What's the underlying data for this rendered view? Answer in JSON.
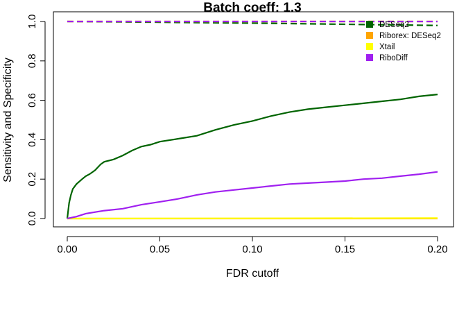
{
  "chart_data": {
    "type": "line",
    "title": "Batch coeff: 1.3",
    "xlabel": "FDR cutoff",
    "ylabel": "Sensitivity and Specificity",
    "xlim": [
      0.0,
      0.2
    ],
    "ylim": [
      0.0,
      1.0
    ],
    "x_ticks": [
      "0.00",
      "0.05",
      "0.10",
      "0.15",
      "0.20"
    ],
    "y_ticks": [
      "0.0",
      "0.2",
      "0.4",
      "0.6",
      "0.8",
      "1.0"
    ],
    "grid": false,
    "legend_position": "top-right",
    "series": [
      {
        "name": "DESeq2",
        "color": "#006400",
        "sensitivity": [
          [
            0.0,
            0.0
          ],
          [
            0.001,
            0.08
          ],
          [
            0.002,
            0.12
          ],
          [
            0.003,
            0.15
          ],
          [
            0.005,
            0.175
          ],
          [
            0.008,
            0.2
          ],
          [
            0.01,
            0.215
          ],
          [
            0.012,
            0.225
          ],
          [
            0.015,
            0.245
          ],
          [
            0.018,
            0.275
          ],
          [
            0.02,
            0.288
          ],
          [
            0.025,
            0.3
          ],
          [
            0.03,
            0.32
          ],
          [
            0.035,
            0.345
          ],
          [
            0.04,
            0.365
          ],
          [
            0.045,
            0.375
          ],
          [
            0.05,
            0.39
          ],
          [
            0.06,
            0.405
          ],
          [
            0.07,
            0.42
          ],
          [
            0.08,
            0.45
          ],
          [
            0.09,
            0.475
          ],
          [
            0.1,
            0.495
          ],
          [
            0.11,
            0.52
          ],
          [
            0.12,
            0.54
          ],
          [
            0.13,
            0.555
          ],
          [
            0.14,
            0.565
          ],
          [
            0.15,
            0.575
          ],
          [
            0.16,
            0.585
          ],
          [
            0.17,
            0.595
          ],
          [
            0.18,
            0.605
          ],
          [
            0.19,
            0.62
          ],
          [
            0.2,
            0.63
          ]
        ],
        "specificity": [
          [
            0.0,
            1.0
          ],
          [
            0.1,
            0.992
          ],
          [
            0.2,
            0.98
          ]
        ]
      },
      {
        "name": "Riborex: DESeq2",
        "color": "#FFA500",
        "sensitivity": [
          [
            0.0,
            0.0
          ],
          [
            0.2,
            0.0
          ]
        ],
        "specificity": [
          [
            0.0,
            1.0
          ],
          [
            0.2,
            1.0
          ]
        ]
      },
      {
        "name": "Xtail",
        "color": "#FFFF00",
        "sensitivity": [
          [
            0.0,
            0.0
          ],
          [
            0.2,
            0.002
          ]
        ],
        "specificity": [
          [
            0.0,
            1.0
          ],
          [
            0.2,
            1.0
          ]
        ]
      },
      {
        "name": "RiboDiff",
        "color": "#A020F0",
        "sensitivity": [
          [
            0.0,
            0.0
          ],
          [
            0.005,
            0.01
          ],
          [
            0.01,
            0.025
          ],
          [
            0.02,
            0.04
          ],
          [
            0.03,
            0.05
          ],
          [
            0.04,
            0.07
          ],
          [
            0.05,
            0.085
          ],
          [
            0.06,
            0.1
          ],
          [
            0.07,
            0.12
          ],
          [
            0.08,
            0.135
          ],
          [
            0.09,
            0.145
          ],
          [
            0.1,
            0.155
          ],
          [
            0.11,
            0.165
          ],
          [
            0.12,
            0.175
          ],
          [
            0.13,
            0.18
          ],
          [
            0.14,
            0.185
          ],
          [
            0.15,
            0.19
          ],
          [
            0.16,
            0.2
          ],
          [
            0.17,
            0.205
          ],
          [
            0.18,
            0.215
          ],
          [
            0.19,
            0.225
          ],
          [
            0.2,
            0.237
          ]
        ],
        "specificity": [
          [
            0.0,
            1.0
          ],
          [
            0.2,
            1.0
          ]
        ]
      }
    ]
  }
}
